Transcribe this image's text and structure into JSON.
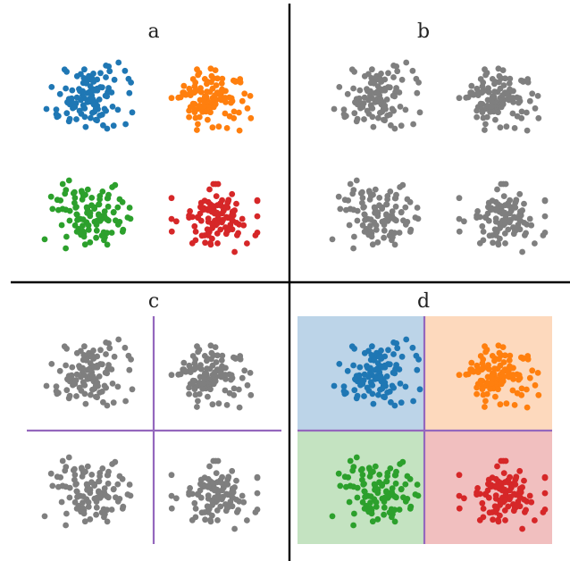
{
  "panels": [
    {
      "id": "a",
      "label": "a",
      "mode": "colored",
      "grid": false,
      "shaded": false
    },
    {
      "id": "b",
      "label": "b",
      "mode": "gray",
      "grid": false,
      "shaded": false
    },
    {
      "id": "c",
      "label": "c",
      "mode": "gray",
      "grid": true,
      "shaded": false
    },
    {
      "id": "d",
      "label": "d",
      "mode": "colored",
      "grid": true,
      "shaded": true
    }
  ],
  "clusters": [
    {
      "name": "top-left",
      "color": "#1f77b4",
      "shade": "#bcd4e8"
    },
    {
      "name": "top-right",
      "color": "#ff7f0e",
      "shade": "#fdd9bd"
    },
    {
      "name": "bottom-left",
      "color": "#2ca02c",
      "shade": "#c4e3c1"
    },
    {
      "name": "bottom-right",
      "color": "#d62728",
      "shade": "#f1bfbf"
    }
  ],
  "colors": {
    "gray_point": "#7f7f7f",
    "divider": "#000000",
    "grid_line": "#9467bd"
  }
}
